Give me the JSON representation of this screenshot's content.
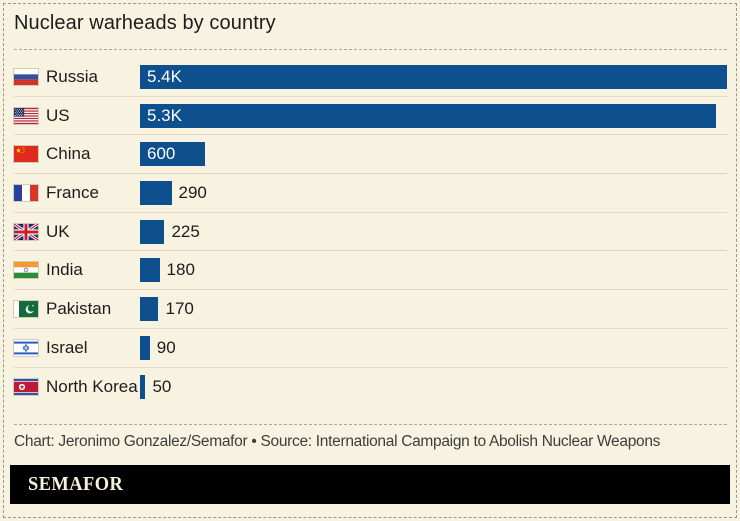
{
  "page": {
    "title": "Nuclear warheads by country",
    "credit": "Chart: Jeronimo Gonzalez/Semafor • Source: International Campaign to Abolish Nuclear Weapons",
    "brand": "SEMAFOR"
  },
  "colors": {
    "background": "#F8F3E1",
    "bar": "#0E4F8E",
    "text": "#1C1C1C",
    "credit_text": "#3D3D3D",
    "divider": "#C9C2A8",
    "rule": "#ADA78F",
    "brand_bar": "#000000",
    "brand_text": "#F6F1DF"
  },
  "chart_data": {
    "type": "bar",
    "orientation": "horizontal",
    "title": "Nuclear warheads by country",
    "xlabel": "",
    "ylabel": "",
    "value_range": [
      0,
      5400
    ],
    "max_value": 5400,
    "grid": false,
    "legend": false,
    "bar_color": "#0E4F8E",
    "categories": [
      "Russia",
      "US",
      "China",
      "France",
      "UK",
      "India",
      "Pakistan",
      "Israel",
      "North Korea"
    ],
    "values": [
      5400,
      5300,
      600,
      290,
      225,
      180,
      170,
      90,
      50
    ],
    "rows": [
      {
        "country": "Russia",
        "value": 5400,
        "display": "5.4K",
        "flag": "russia-flag-icon"
      },
      {
        "country": "US",
        "value": 5300,
        "display": "5.3K",
        "flag": "us-flag-icon"
      },
      {
        "country": "China",
        "value": 600,
        "display": "600",
        "flag": "china-flag-icon"
      },
      {
        "country": "France",
        "value": 290,
        "display": "290",
        "flag": "france-flag-icon"
      },
      {
        "country": "UK",
        "value": 225,
        "display": "225",
        "flag": "uk-flag-icon"
      },
      {
        "country": "India",
        "value": 180,
        "display": "180",
        "flag": "india-flag-icon"
      },
      {
        "country": "Pakistan",
        "value": 170,
        "display": "170",
        "flag": "pakistan-flag-icon"
      },
      {
        "country": "Israel",
        "value": 90,
        "display": "90",
        "flag": "israel-flag-icon"
      },
      {
        "country": "North Korea",
        "value": 50,
        "display": "50",
        "flag": "north-korea-flag-icon"
      }
    ]
  }
}
